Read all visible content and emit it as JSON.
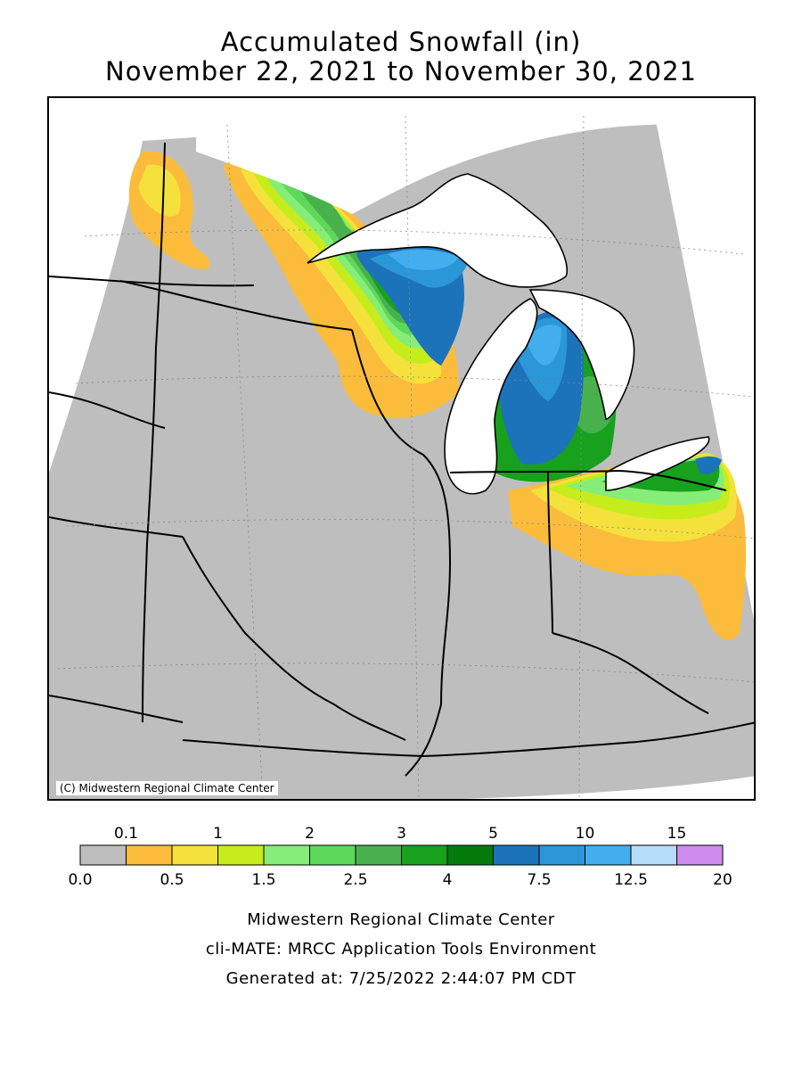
{
  "title": {
    "line1": "Accumulated Snowfall (in)",
    "line2": "November 22, 2021 to November 30, 2021"
  },
  "map": {
    "copyright": "(C) Midwestern Regional Climate Center",
    "region": "Upper Midwest / Great Lakes",
    "lake_color": "#ffffff",
    "no_data_color": "#c0c0c0"
  },
  "legend": {
    "top_labels": [
      "0.1",
      "1",
      "2",
      "3",
      "5",
      "10",
      "15"
    ],
    "bottom_labels": [
      "0.0",
      "0.5",
      "1.5",
      "2.5",
      "4",
      "7.5",
      "12.5",
      "20"
    ],
    "bins": [
      {
        "range": "0.0-0.1",
        "color": "#bebebe"
      },
      {
        "range": "0.1-0.5",
        "color": "#fbbc3c"
      },
      {
        "range": "0.5-1",
        "color": "#f5e13c"
      },
      {
        "range": "1-1.5",
        "color": "#c6ec1c"
      },
      {
        "range": "1.5-2",
        "color": "#86ee78"
      },
      {
        "range": "2-2.5",
        "color": "#5ed85a"
      },
      {
        "range": "2.5-3",
        "color": "#49b14b"
      },
      {
        "range": "3-4",
        "color": "#17a11d"
      },
      {
        "range": "4-5",
        "color": "#047b0b"
      },
      {
        "range": "5-7.5",
        "color": "#1c73ba"
      },
      {
        "range": "7.5-10",
        "color": "#2b96d8"
      },
      {
        "range": "10-12.5",
        "color": "#42aeee"
      },
      {
        "range": "12.5-15",
        "color": "#b6ddfa"
      },
      {
        "range": "15-20",
        "color": "#cd8ceb"
      }
    ]
  },
  "footer": {
    "line1": "Midwestern Regional Climate Center",
    "line2": "cli-MATE: MRCC Application Tools Environment",
    "line3": "Generated at: 7/25/2022 2:44:07 PM CDT"
  }
}
